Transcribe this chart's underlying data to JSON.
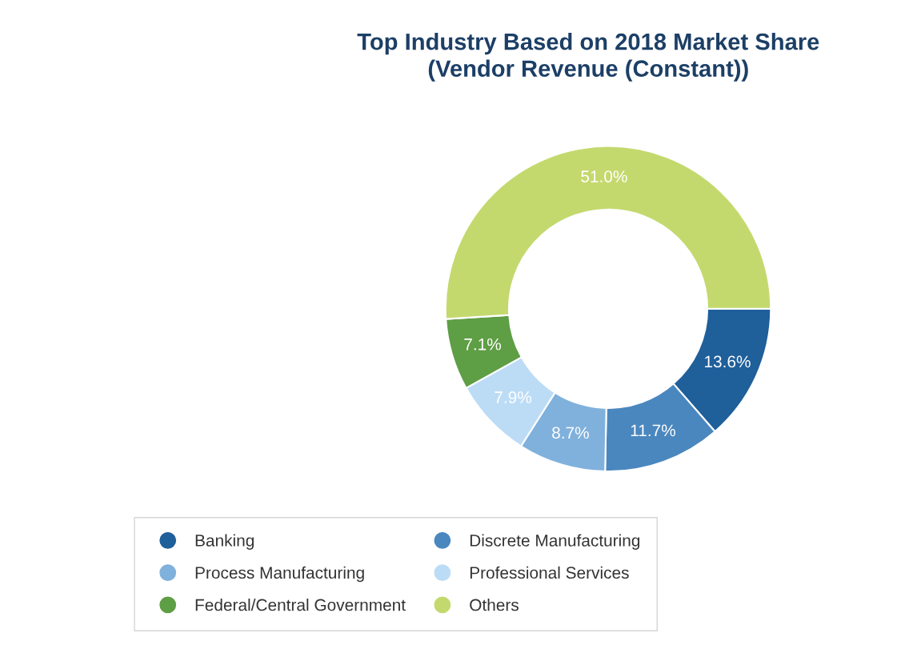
{
  "chart_data": {
    "type": "donut",
    "title": "Top Industry Based on 2018 Market Share\n(Vendor Revenue (Constant))",
    "categories": [
      "Banking",
      "Discrete Manufacturing",
      "Process Manufacturing",
      "Professional Services",
      "Federal/Central Government",
      "Others"
    ],
    "values": [
      13.6,
      11.7,
      8.7,
      7.9,
      7.1,
      51.0
    ],
    "colors": [
      "#1f5f9a",
      "#4a87bf",
      "#80b1dc",
      "#bcdcf6",
      "#5e9e45",
      "#c3d96e"
    ],
    "value_labels": [
      "13.6%",
      "11.7%",
      "8.7%",
      "7.9%",
      "7.1%",
      "51.0%"
    ],
    "legend": "bottom"
  }
}
